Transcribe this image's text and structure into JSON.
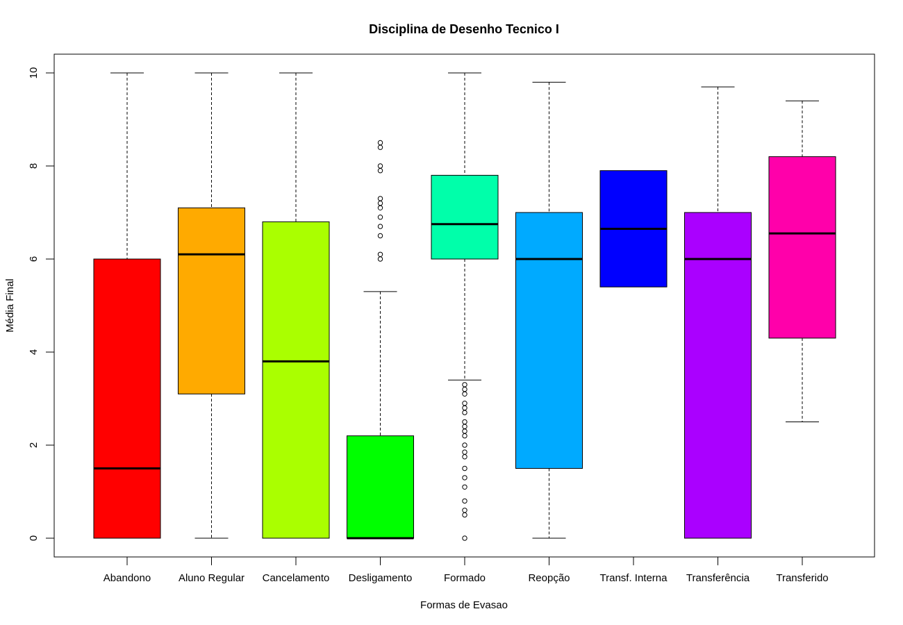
{
  "chart_data": {
    "type": "boxplot",
    "title": "Disciplina de Desenho Tecnico I",
    "xlabel": "Formas de Evasao",
    "ylabel": "Média Final",
    "ylim": [
      -0.4,
      10.4
    ],
    "yticks": [
      0,
      2,
      4,
      6,
      8,
      10
    ],
    "grid": false,
    "legend": "none",
    "categories": [
      "Abandono",
      "Aluno Regular",
      "Cancelamento",
      "Desligamento",
      "Formado",
      "Reopção",
      "Transf. Interna",
      "Transferência",
      "Transferido"
    ],
    "boxes": [
      {
        "min": 0,
        "q1": 0,
        "median": 1.5,
        "q3": 6.0,
        "max": 10,
        "outliers": [],
        "color": "#FF0000"
      },
      {
        "min": 0,
        "q1": 3.1,
        "median": 6.1,
        "q3": 7.1,
        "max": 10,
        "outliers": [],
        "color": "#FFAA00"
      },
      {
        "min": 0,
        "q1": 0,
        "median": 3.8,
        "q3": 6.8,
        "max": 10,
        "outliers": [],
        "color": "#AAFF00"
      },
      {
        "min": 0,
        "q1": 0,
        "median": 0,
        "q3": 2.2,
        "max": 5.3,
        "outliers": [
          6.0,
          6.1,
          6.5,
          6.7,
          6.9,
          7.1,
          7.2,
          7.3,
          7.9,
          8.0,
          8.4,
          8.5
        ],
        "color": "#00FF00"
      },
      {
        "min": 3.4,
        "q1": 6.0,
        "median": 6.75,
        "q3": 7.8,
        "max": 10,
        "outliers": [
          0,
          0.5,
          0.6,
          0.8,
          1.1,
          1.3,
          1.5,
          1.75,
          1.85,
          2.0,
          2.2,
          2.3,
          2.4,
          2.5,
          2.7,
          2.8,
          2.9,
          3.1,
          3.2,
          3.3
        ],
        "color": "#00FFAA"
      },
      {
        "min": 0,
        "q1": 1.5,
        "median": 6.0,
        "q3": 7.0,
        "max": 9.8,
        "outliers": [],
        "color": "#00AAFF"
      },
      {
        "min": 5.4,
        "q1": 5.4,
        "median": 6.65,
        "q3": 7.9,
        "max": 7.9,
        "outliers": [],
        "color": "#0000FF"
      },
      {
        "min": 0,
        "q1": 0,
        "median": 6.0,
        "q3": 7.0,
        "max": 9.7,
        "outliers": [],
        "color": "#AA00FF"
      },
      {
        "min": 2.5,
        "q1": 4.3,
        "median": 6.55,
        "q3": 8.2,
        "max": 9.4,
        "outliers": [],
        "color": "#FF00AA"
      }
    ]
  }
}
